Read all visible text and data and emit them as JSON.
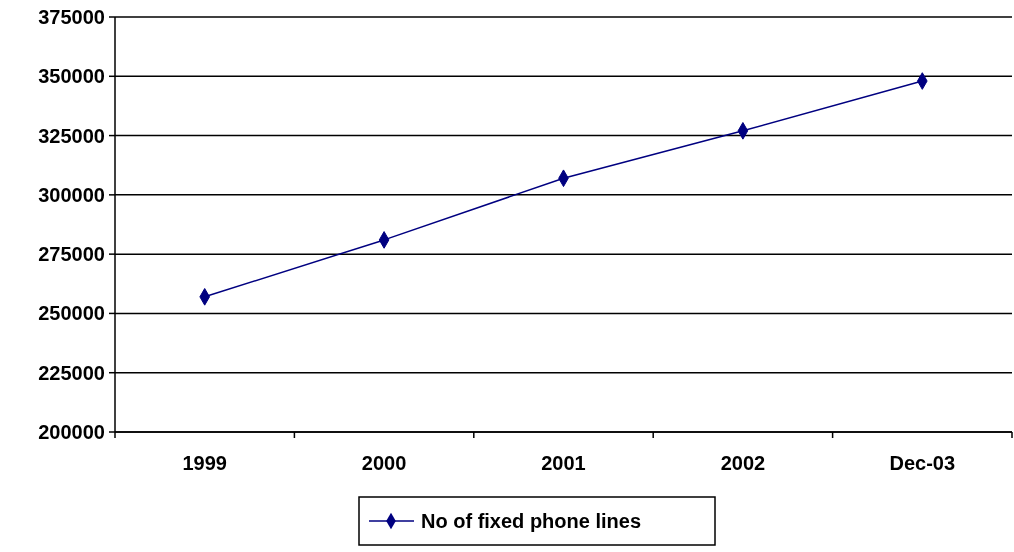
{
  "chart_data": {
    "type": "line",
    "categories": [
      "1999",
      "2000",
      "2001",
      "2002",
      "Dec-03"
    ],
    "series": [
      {
        "name": "No of fixed phone lines",
        "color": "#000080",
        "values": [
          257000,
          281000,
          307000,
          327000,
          348000
        ]
      }
    ],
    "ylim": [
      200000,
      375000
    ],
    "yticks": [
      200000,
      225000,
      250000,
      275000,
      300000,
      325000,
      350000,
      375000
    ],
    "grid": "y",
    "legend": "bottom",
    "marker": "diamond",
    "line_style": "solid"
  }
}
